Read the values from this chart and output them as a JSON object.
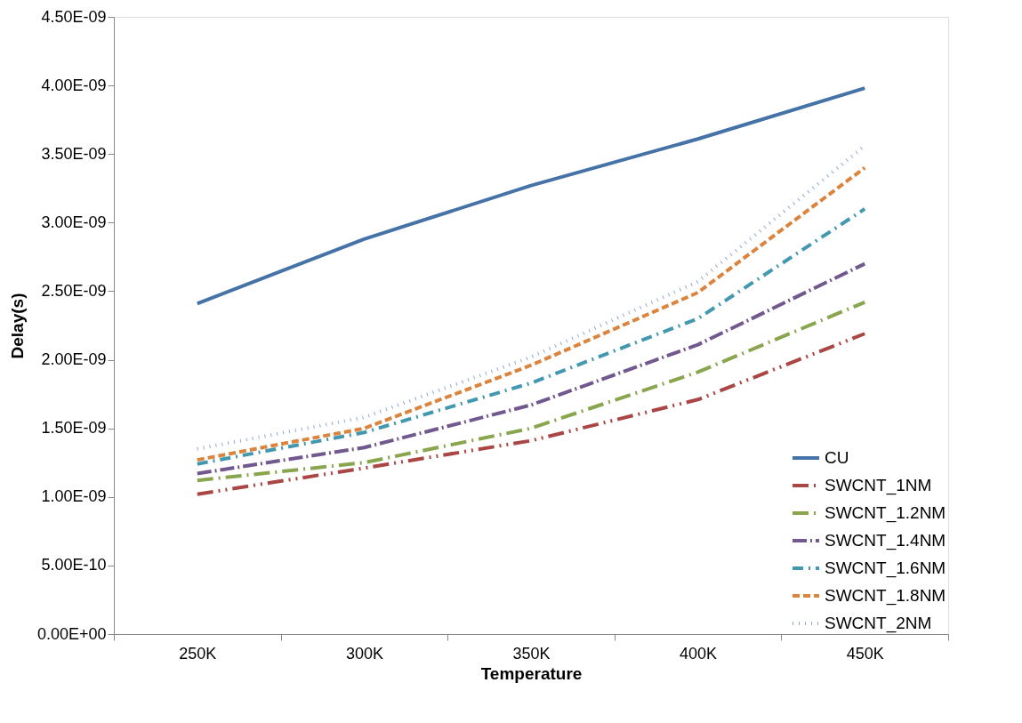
{
  "chart_data": {
    "type": "line",
    "xlabel": "Temperature",
    "ylabel": "Delay(s)",
    "categories": [
      "250K",
      "300K",
      "350K",
      "400K",
      "450K"
    ],
    "series": [
      {
        "name": "CU",
        "color": "#4572a7",
        "line_style": "solid",
        "values": [
          2.41e-09,
          2.88e-09,
          3.27e-09,
          3.61e-09,
          3.98e-09
        ]
      },
      {
        "name": "SWCNT_1NM",
        "color": "#aa4643",
        "line_style": "dashed",
        "values": [
          1.02e-09,
          1.21e-09,
          1.41e-09,
          1.71e-09,
          2.19e-09
        ]
      },
      {
        "name": "SWCNT_1.2NM",
        "color": "#89a54e",
        "line_style": "dashed",
        "values": [
          1.12e-09,
          1.25e-09,
          1.5e-09,
          1.91e-09,
          2.42e-09
        ]
      },
      {
        "name": "SWCNT_1.4NM",
        "color": "#71588f",
        "line_style": "dashed",
        "values": [
          1.17e-09,
          1.36e-09,
          1.67e-09,
          2.11e-09,
          2.7e-09
        ]
      },
      {
        "name": "SWCNT_1.6NM",
        "color": "#4198af",
        "line_style": "dashed",
        "values": [
          1.24e-09,
          1.47e-09,
          1.83e-09,
          2.3e-09,
          3.1e-09
        ]
      },
      {
        "name": "SWCNT_1.8NM",
        "color": "#db843d",
        "line_style": "dashed",
        "values": [
          1.27e-09,
          1.5e-09,
          1.96e-09,
          2.49e-09,
          3.4e-09
        ]
      },
      {
        "name": "SWCNT_2NM",
        "color": "#93a9cf",
        "line_style": "dotted",
        "values": [
          1.35e-09,
          1.58e-09,
          2.02e-09,
          2.57e-09,
          3.56e-09
        ]
      }
    ],
    "ylim": [
      0,
      4.5e-09
    ],
    "yticks": [
      {
        "value": 0,
        "label": "0.00E+00"
      },
      {
        "value": 5e-10,
        "label": "5.00E-10"
      },
      {
        "value": 1e-09,
        "label": "1.00E-09"
      },
      {
        "value": 1.5e-09,
        "label": "1.50E-09"
      },
      {
        "value": 2e-09,
        "label": "2.00E-09"
      },
      {
        "value": 2.5e-09,
        "label": "2.50E-09"
      },
      {
        "value": 3e-09,
        "label": "3.00E-09"
      },
      {
        "value": 3.5e-09,
        "label": "3.50E-09"
      },
      {
        "value": 4e-09,
        "label": "4.00E-09"
      },
      {
        "value": 4.5e-09,
        "label": "4.50E-09"
      }
    ],
    "grid": false,
    "legend": "bottom right",
    "marker": "none"
  }
}
